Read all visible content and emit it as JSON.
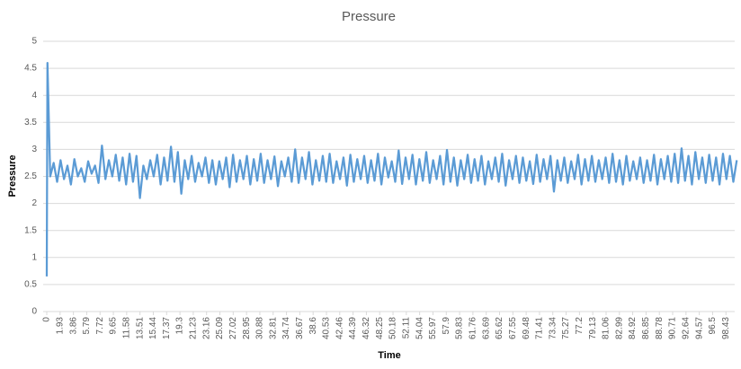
{
  "chart_data": {
    "type": "line",
    "title": "Pressure",
    "x_label": "Time",
    "y_label": "Pressure",
    "x": [
      0,
      0.1,
      0.5,
      1,
      1.5,
      2,
      2.5,
      3,
      3.5,
      4,
      4.5,
      5,
      5.5,
      6,
      6.5,
      7,
      7.5,
      8,
      8.5,
      9,
      9.5,
      10,
      10.5,
      11,
      11.5,
      12,
      12.5,
      13,
      13.5,
      14,
      14.5,
      15,
      15.5,
      16,
      16.5,
      17,
      17.5,
      18,
      18.5,
      19,
      19.5,
      20,
      20.5,
      21,
      21.5,
      22,
      22.5,
      23,
      23.5,
      24,
      24.5,
      25,
      25.5,
      26,
      26.5,
      27,
      27.5,
      28,
      28.5,
      29,
      29.5,
      30,
      30.5,
      31,
      31.5,
      32,
      32.5,
      33,
      33.5,
      34,
      34.5,
      35,
      35.5,
      36,
      36.5,
      37,
      37.5,
      38,
      38.5,
      39,
      39.5,
      40,
      40.5,
      41,
      41.5,
      42,
      42.5,
      43,
      43.5,
      44,
      44.5,
      45,
      45.5,
      46,
      46.5,
      47,
      47.5,
      48,
      48.5,
      49,
      49.5,
      50,
      50.5,
      51,
      51.5,
      52,
      52.5,
      53,
      53.5,
      54,
      54.5,
      55,
      55.5,
      56,
      56.5,
      57,
      57.5,
      58,
      58.5,
      59,
      59.5,
      60,
      60.5,
      61,
      61.5,
      62,
      62.5,
      63,
      63.5,
      64,
      64.5,
      65,
      65.5,
      66,
      66.5,
      67,
      67.5,
      68,
      68.5,
      69,
      69.5,
      70,
      70.5,
      71,
      71.5,
      72,
      72.5,
      73,
      73.5,
      74,
      74.5,
      75,
      75.5,
      76,
      76.5,
      77,
      77.5,
      78,
      78.5,
      79,
      79.5,
      80,
      80.5,
      81,
      81.5,
      82,
      82.5,
      83,
      83.5,
      84,
      84.5,
      85,
      85.5,
      86,
      86.5,
      87,
      87.5,
      88,
      88.5,
      89,
      89.5,
      90,
      90.5,
      91,
      91.5,
      92,
      92.5,
      93,
      93.5,
      94,
      94.5,
      95,
      95.5,
      96,
      96.5,
      97,
      97.5,
      98,
      98.5,
      99,
      99.5,
      100
    ],
    "series": [
      {
        "name": "Pressure",
        "color": "#5b9bd5",
        "values": [
          0.65,
          4.6,
          2.5,
          2.75,
          2.4,
          2.8,
          2.45,
          2.7,
          2.35,
          2.82,
          2.5,
          2.65,
          2.4,
          2.78,
          2.55,
          2.7,
          2.38,
          3.07,
          2.45,
          2.8,
          2.5,
          2.9,
          2.42,
          2.85,
          2.35,
          2.92,
          2.4,
          2.88,
          2.1,
          2.7,
          2.45,
          2.8,
          2.5,
          2.9,
          2.35,
          2.85,
          2.42,
          3.05,
          2.4,
          2.95,
          2.18,
          2.8,
          2.45,
          2.88,
          2.4,
          2.75,
          2.5,
          2.85,
          2.38,
          2.8,
          2.35,
          2.78,
          2.45,
          2.85,
          2.3,
          2.9,
          2.4,
          2.8,
          2.45,
          2.88,
          2.35,
          2.82,
          2.42,
          2.92,
          2.38,
          2.8,
          2.45,
          2.87,
          2.32,
          2.78,
          2.5,
          2.85,
          2.4,
          3.0,
          2.38,
          2.85,
          2.45,
          2.95,
          2.35,
          2.8,
          2.42,
          2.88,
          2.4,
          2.92,
          2.38,
          2.78,
          2.45,
          2.85,
          2.33,
          2.9,
          2.4,
          2.82,
          2.45,
          2.88,
          2.38,
          2.8,
          2.42,
          2.92,
          2.35,
          2.85,
          2.48,
          2.78,
          2.4,
          2.98,
          2.36,
          2.85,
          2.45,
          2.9,
          2.35,
          2.82,
          2.42,
          2.95,
          2.38,
          2.8,
          2.45,
          2.88,
          2.35,
          2.99,
          2.4,
          2.85,
          2.33,
          2.8,
          2.45,
          2.9,
          2.38,
          2.82,
          2.42,
          2.88,
          2.35,
          2.78,
          2.45,
          2.85,
          2.4,
          2.92,
          2.33,
          2.8,
          2.45,
          2.88,
          2.38,
          2.85,
          2.42,
          2.78,
          2.36,
          2.9,
          2.4,
          2.82,
          2.45,
          2.88,
          2.22,
          2.8,
          2.42,
          2.85,
          2.38,
          2.78,
          2.45,
          2.9,
          2.35,
          2.82,
          2.42,
          2.88,
          2.4,
          2.8,
          2.45,
          2.85,
          2.38,
          2.92,
          2.4,
          2.8,
          2.35,
          2.88,
          2.42,
          2.78,
          2.45,
          2.85,
          2.38,
          2.8,
          2.42,
          2.9,
          2.35,
          2.82,
          2.45,
          2.88,
          2.4,
          2.92,
          2.38,
          3.02,
          2.42,
          2.88,
          2.35,
          2.95,
          2.45,
          2.85,
          2.38,
          2.9,
          2.42,
          2.85,
          2.35,
          2.92,
          2.45,
          2.88,
          2.4,
          2.8
        ]
      }
    ],
    "xlim": [
      0,
      99.7
    ],
    "xticks": [
      0,
      1.93,
      3.86,
      5.79,
      7.72,
      9.65,
      11.58,
      13.51,
      15.44,
      17.37,
      19.3,
      21.23,
      23.16,
      25.09,
      27.02,
      28.95,
      30.88,
      32.81,
      34.74,
      36.67,
      38.6,
      40.53,
      42.46,
      44.39,
      46.32,
      48.25,
      50.18,
      52.11,
      54.04,
      55.97,
      57.9,
      59.83,
      61.76,
      63.69,
      65.62,
      67.55,
      69.48,
      71.41,
      73.34,
      75.27,
      77.2,
      79.13,
      81.06,
      82.99,
      84.92,
      86.85,
      88.78,
      90.71,
      92.64,
      94.57,
      96.5,
      98.43
    ],
    "ylim": [
      0,
      5
    ],
    "yticks": [
      0,
      0.5,
      1,
      1.5,
      2,
      2.5,
      3,
      3.5,
      4,
      4.5,
      5
    ],
    "grid": true
  }
}
